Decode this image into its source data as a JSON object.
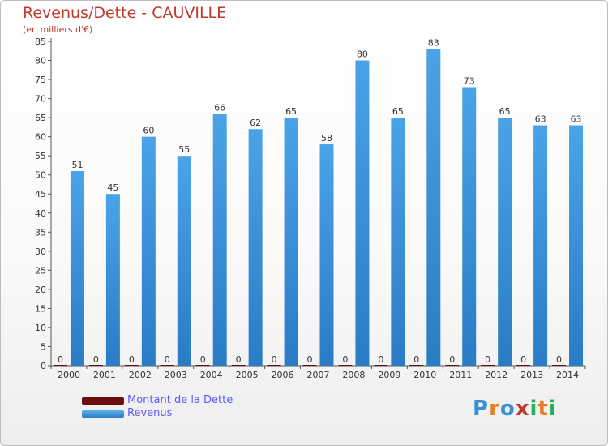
{
  "chart_title": "Revenus/Dette - CAUVILLE",
  "chart_subtitle": "(en milliers d'€)",
  "legend": [
    {
      "label": "Montant de la Dette",
      "color": "#6b0e0e"
    },
    {
      "label": "Revenus",
      "color": "#3a8fd6"
    }
  ],
  "logo": "Proxiti",
  "colors": {
    "revenus": "#4aa3e8",
    "revenus_dark": "#2a7cc4",
    "dette": "#6b0e0e",
    "axis": "#666666",
    "grid": "#d9d9d9"
  },
  "chart_data": {
    "type": "bar",
    "title": "Revenus/Dette - CAUVILLE",
    "subtitle": "(en milliers d'€)",
    "xlabel": "",
    "ylabel": "",
    "ylim": [
      0,
      85
    ],
    "y_ticks": [
      0,
      5,
      10,
      15,
      20,
      25,
      30,
      35,
      40,
      45,
      50,
      55,
      60,
      65,
      70,
      75,
      80,
      85
    ],
    "grid": false,
    "legend_position": "bottom-left",
    "categories": [
      "2000",
      "2001",
      "2002",
      "2003",
      "2004",
      "2005",
      "2006",
      "2007",
      "2008",
      "2009",
      "2010",
      "2011",
      "2012",
      "2013",
      "2014"
    ],
    "series": [
      {
        "name": "Montant de la Dette",
        "values": [
          0,
          0,
          0,
          0,
          0,
          0,
          0,
          0,
          0,
          0,
          0,
          0,
          0,
          0,
          0
        ]
      },
      {
        "name": "Revenus",
        "values": [
          51,
          45,
          60,
          55,
          66,
          62,
          65,
          58,
          80,
          65,
          83,
          73,
          65,
          63,
          63
        ]
      }
    ]
  }
}
